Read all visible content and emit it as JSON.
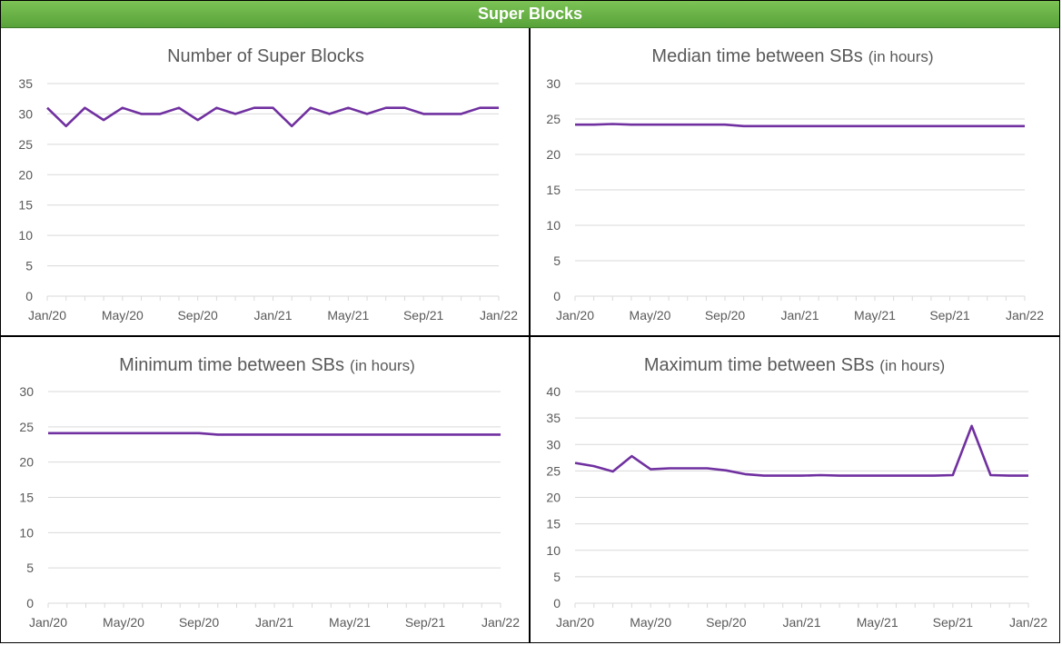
{
  "header": {
    "title": "Super Blocks"
  },
  "colors": {
    "header_bg": "#6ab547",
    "line": "#7030a0",
    "grid": "#d9d9d9",
    "axis_text": "#595959"
  },
  "chart_data": [
    {
      "type": "line",
      "title_main": "Number of Super Blocks",
      "title_sub": "",
      "xlabel": "",
      "ylabel": "",
      "ylim": [
        0,
        35
      ],
      "yticks": [
        0,
        5,
        10,
        15,
        20,
        25,
        30,
        35
      ],
      "xtick_labels": [
        "Jan/20",
        "May/20",
        "Sep/20",
        "Jan/21",
        "May/21",
        "Sep/21",
        "Jan/22"
      ],
      "grid": true,
      "x": [
        "Jan/20",
        "Feb/20",
        "Mar/20",
        "Apr/20",
        "May/20",
        "Jun/20",
        "Jul/20",
        "Aug/20",
        "Sep/20",
        "Oct/20",
        "Nov/20",
        "Dec/20",
        "Jan/21",
        "Feb/21",
        "Mar/21",
        "Apr/21",
        "May/21",
        "Jun/21",
        "Jul/21",
        "Aug/21",
        "Sep/21",
        "Oct/21",
        "Nov/21",
        "Dec/21",
        "Jan/22"
      ],
      "series": [
        {
          "values": [
            31,
            28,
            31,
            29,
            31,
            30,
            30,
            31,
            29,
            31,
            30,
            31,
            31,
            28,
            31,
            30,
            31,
            30,
            31,
            31,
            30,
            30,
            30,
            31,
            31
          ]
        }
      ]
    },
    {
      "type": "line",
      "title_main": "Median time between SBs",
      "title_sub": "(in hours)",
      "xlabel": "",
      "ylabel": "",
      "ylim": [
        0,
        30
      ],
      "yticks": [
        0,
        5,
        10,
        15,
        20,
        25,
        30
      ],
      "xtick_labels": [
        "Jan/20",
        "May/20",
        "Sep/20",
        "Jan/21",
        "May/21",
        "Sep/21",
        "Jan/22"
      ],
      "grid": true,
      "x": [
        "Jan/20",
        "Feb/20",
        "Mar/20",
        "Apr/20",
        "May/20",
        "Jun/20",
        "Jul/20",
        "Aug/20",
        "Sep/20",
        "Oct/20",
        "Nov/20",
        "Dec/20",
        "Jan/21",
        "Feb/21",
        "Mar/21",
        "Apr/21",
        "May/21",
        "Jun/21",
        "Jul/21",
        "Aug/21",
        "Sep/21",
        "Oct/21",
        "Nov/21",
        "Dec/21",
        "Jan/22"
      ],
      "series": [
        {
          "values": [
            24.2,
            24.2,
            24.3,
            24.2,
            24.2,
            24.2,
            24.2,
            24.2,
            24.2,
            24.0,
            24.0,
            24.0,
            24.0,
            24.0,
            24.0,
            24.0,
            24.0,
            24.0,
            24.0,
            24.0,
            24.0,
            24.0,
            24.0,
            24.0,
            24.0
          ]
        }
      ]
    },
    {
      "type": "line",
      "title_main": "Minimum time between SBs",
      "title_sub": "(in hours)",
      "xlabel": "",
      "ylabel": "",
      "ylim": [
        0,
        30
      ],
      "yticks": [
        0,
        5,
        10,
        15,
        20,
        25,
        30
      ],
      "xtick_labels": [
        "Jan/20",
        "May/20",
        "Sep/20",
        "Jan/21",
        "May/21",
        "Sep/21",
        "Jan/22"
      ],
      "grid": true,
      "x": [
        "Jan/20",
        "Feb/20",
        "Mar/20",
        "Apr/20",
        "May/20",
        "Jun/20",
        "Jul/20",
        "Aug/20",
        "Sep/20",
        "Oct/20",
        "Nov/20",
        "Dec/20",
        "Jan/21",
        "Feb/21",
        "Mar/21",
        "Apr/21",
        "May/21",
        "Jun/21",
        "Jul/21",
        "Aug/21",
        "Sep/21",
        "Oct/21",
        "Nov/21",
        "Dec/21",
        "Jan/22"
      ],
      "series": [
        {
          "values": [
            24.1,
            24.1,
            24.1,
            24.1,
            24.1,
            24.1,
            24.1,
            24.1,
            24.1,
            23.9,
            23.9,
            23.9,
            23.9,
            23.9,
            23.9,
            23.9,
            23.9,
            23.9,
            23.9,
            23.9,
            23.9,
            23.9,
            23.9,
            23.9,
            23.9
          ]
        }
      ]
    },
    {
      "type": "line",
      "title_main": "Maximum time  between SBs",
      "title_sub": "(in hours)",
      "xlabel": "",
      "ylabel": "",
      "ylim": [
        0,
        40
      ],
      "yticks": [
        0,
        5,
        10,
        15,
        20,
        25,
        30,
        35,
        40
      ],
      "xtick_labels": [
        "Jan/20",
        "May/20",
        "Sep/20",
        "Jan/21",
        "May/21",
        "Sep/21",
        "Jan/22"
      ],
      "grid": true,
      "x": [
        "Jan/20",
        "Feb/20",
        "Mar/20",
        "Apr/20",
        "May/20",
        "Jun/20",
        "Jul/20",
        "Aug/20",
        "Sep/20",
        "Oct/20",
        "Nov/20",
        "Dec/20",
        "Jan/21",
        "Feb/21",
        "Mar/21",
        "Apr/21",
        "May/21",
        "Jun/21",
        "Jul/21",
        "Aug/21",
        "Sep/21",
        "Oct/21",
        "Nov/21",
        "Dec/21",
        "Jan/22"
      ],
      "series": [
        {
          "values": [
            26.5,
            25.9,
            24.9,
            27.8,
            25.3,
            25.5,
            25.5,
            25.5,
            25.1,
            24.4,
            24.1,
            24.1,
            24.1,
            24.2,
            24.1,
            24.1,
            24.1,
            24.1,
            24.1,
            24.1,
            24.2,
            33.5,
            24.2,
            24.1,
            24.1
          ]
        }
      ]
    }
  ]
}
